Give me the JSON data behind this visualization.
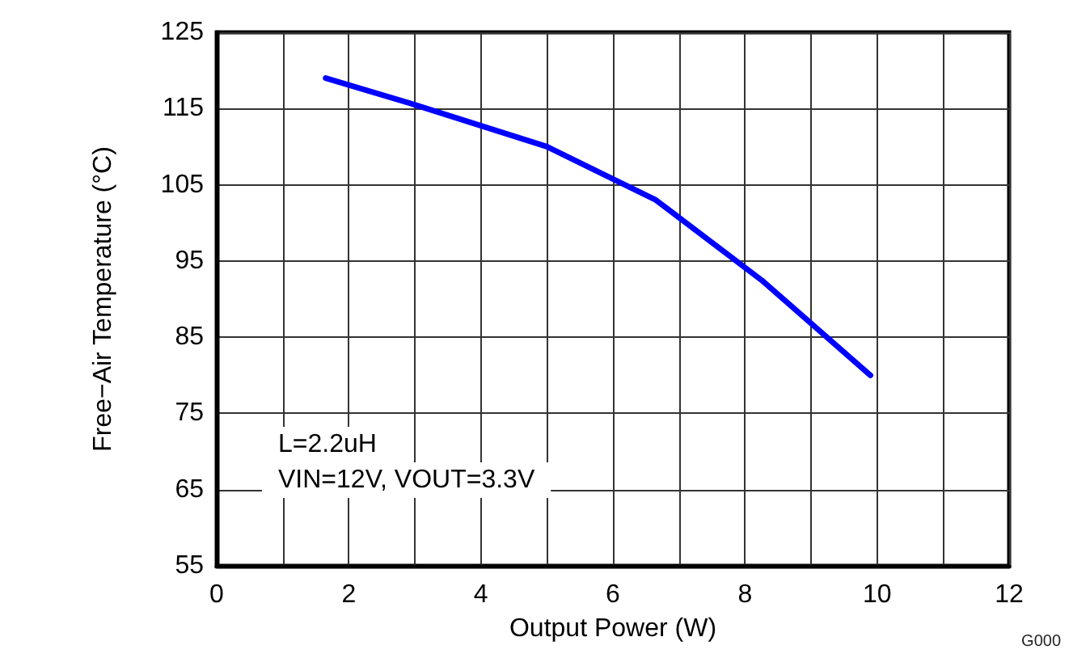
{
  "chart_data": {
    "type": "line",
    "xlabel": "Output Power (W)",
    "ylabel": "Free−Air Temperature (°C)",
    "x": [
      1.65,
      3,
      5,
      6.65,
      8.25,
      9.9
    ],
    "series": [
      {
        "color": "#0000ff",
        "values": [
          119,
          115.5,
          110,
          103,
          92.5,
          80
        ]
      }
    ],
    "xlim": [
      0,
      12
    ],
    "xticks": [
      0,
      {
        "value": 1,
        "label": null
      },
      2,
      {
        "value": 3,
        "label": null
      },
      4,
      {
        "value": 5,
        "label": null
      },
      6,
      {
        "value": 7,
        "label": null
      },
      8,
      {
        "value": 9,
        "label": null
      },
      10,
      {
        "value": 11,
        "label": null
      },
      12
    ],
    "ylim": [
      55,
      125
    ],
    "yticks": [
      55,
      65,
      75,
      85,
      95,
      105,
      115,
      125
    ],
    "grid": true,
    "marker": "none",
    "line_style": "solid",
    "annotations": [
      "L=2.2uH",
      "VIN=12V, VOUT=3.3V",
      "G000"
    ]
  }
}
